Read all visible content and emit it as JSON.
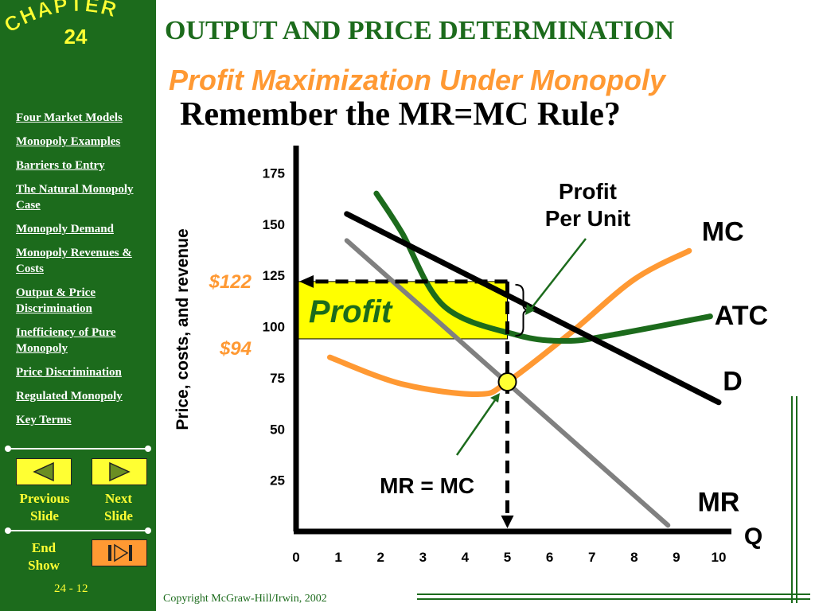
{
  "sidebar": {
    "chapter_word": "CHAPTER",
    "chapter_number": "24",
    "nav_items": [
      "Four Market Models",
      "Monopoly Examples",
      "Barriers to Entry",
      "The Natural Monopoly Case",
      "Monopoly Demand",
      "Monopoly Revenues & Costs",
      "Output & Price Discrimination",
      "Inefficiency of Pure Monopoly",
      "Price Discrimination",
      "Regulated Monopoly",
      "Key Terms"
    ],
    "previous_label": "Previous Slide",
    "next_label": "Next Slide",
    "end_label": "End Show",
    "slide_number": "24 - 12"
  },
  "header": {
    "title": "OUTPUT AND PRICE DETERMINATION",
    "subtitle": "Profit Maximization Under Monopoly",
    "heading": "Remember the MR=MC Rule?"
  },
  "footer": {
    "copyright": "Copyright McGraw-Hill/Irwin,  2002"
  },
  "colors": {
    "sidebar_green": "#1c6b1c",
    "accent_orange": "#ff9933",
    "highlight_yellow": "#ffff33",
    "profit_fill": "#ffff00",
    "mr_gray": "#808080"
  },
  "chart_data": {
    "type": "line",
    "ylabel": "Price, costs, and revenue",
    "xlabel": "Q",
    "xlim": [
      0,
      10
    ],
    "ylim": [
      0,
      200
    ],
    "x_ticks": [
      0,
      1,
      2,
      3,
      4,
      5,
      6,
      7,
      8,
      9,
      10
    ],
    "y_ticks": [
      25,
      50,
      75,
      100,
      125,
      150,
      175,
      200
    ],
    "series": [
      {
        "name": "D",
        "color": "#000000",
        "points": [
          [
            1.2,
            155
          ],
          [
            10,
            63
          ]
        ]
      },
      {
        "name": "MR",
        "color": "#808080",
        "points": [
          [
            1.2,
            142
          ],
          [
            8.8,
            3
          ]
        ]
      },
      {
        "name": "MC",
        "color": "#ff9933",
        "points": [
          [
            0.8,
            85
          ],
          [
            2.5,
            72
          ],
          [
            4.3,
            67
          ],
          [
            5,
            73
          ],
          [
            6.5,
            97
          ],
          [
            8,
            123
          ],
          [
            9.3,
            137
          ]
        ]
      },
      {
        "name": "ATC",
        "color": "#1c6b1c",
        "points": [
          [
            1.9,
            165
          ],
          [
            2.5,
            146
          ],
          [
            3.5,
            110
          ],
          [
            5.2,
            96
          ],
          [
            6.4,
            93
          ],
          [
            7.5,
            96
          ],
          [
            9.8,
            105
          ]
        ]
      }
    ],
    "price_label": "$122",
    "atc_label": "$94",
    "price": 122,
    "atc_at_q": 94,
    "q_star": 5,
    "mr_mc_value": 73,
    "profit_label": "Profit",
    "profit_per_unit_label": "Profit Per Unit",
    "mr_mc_label": "MR = MC"
  }
}
